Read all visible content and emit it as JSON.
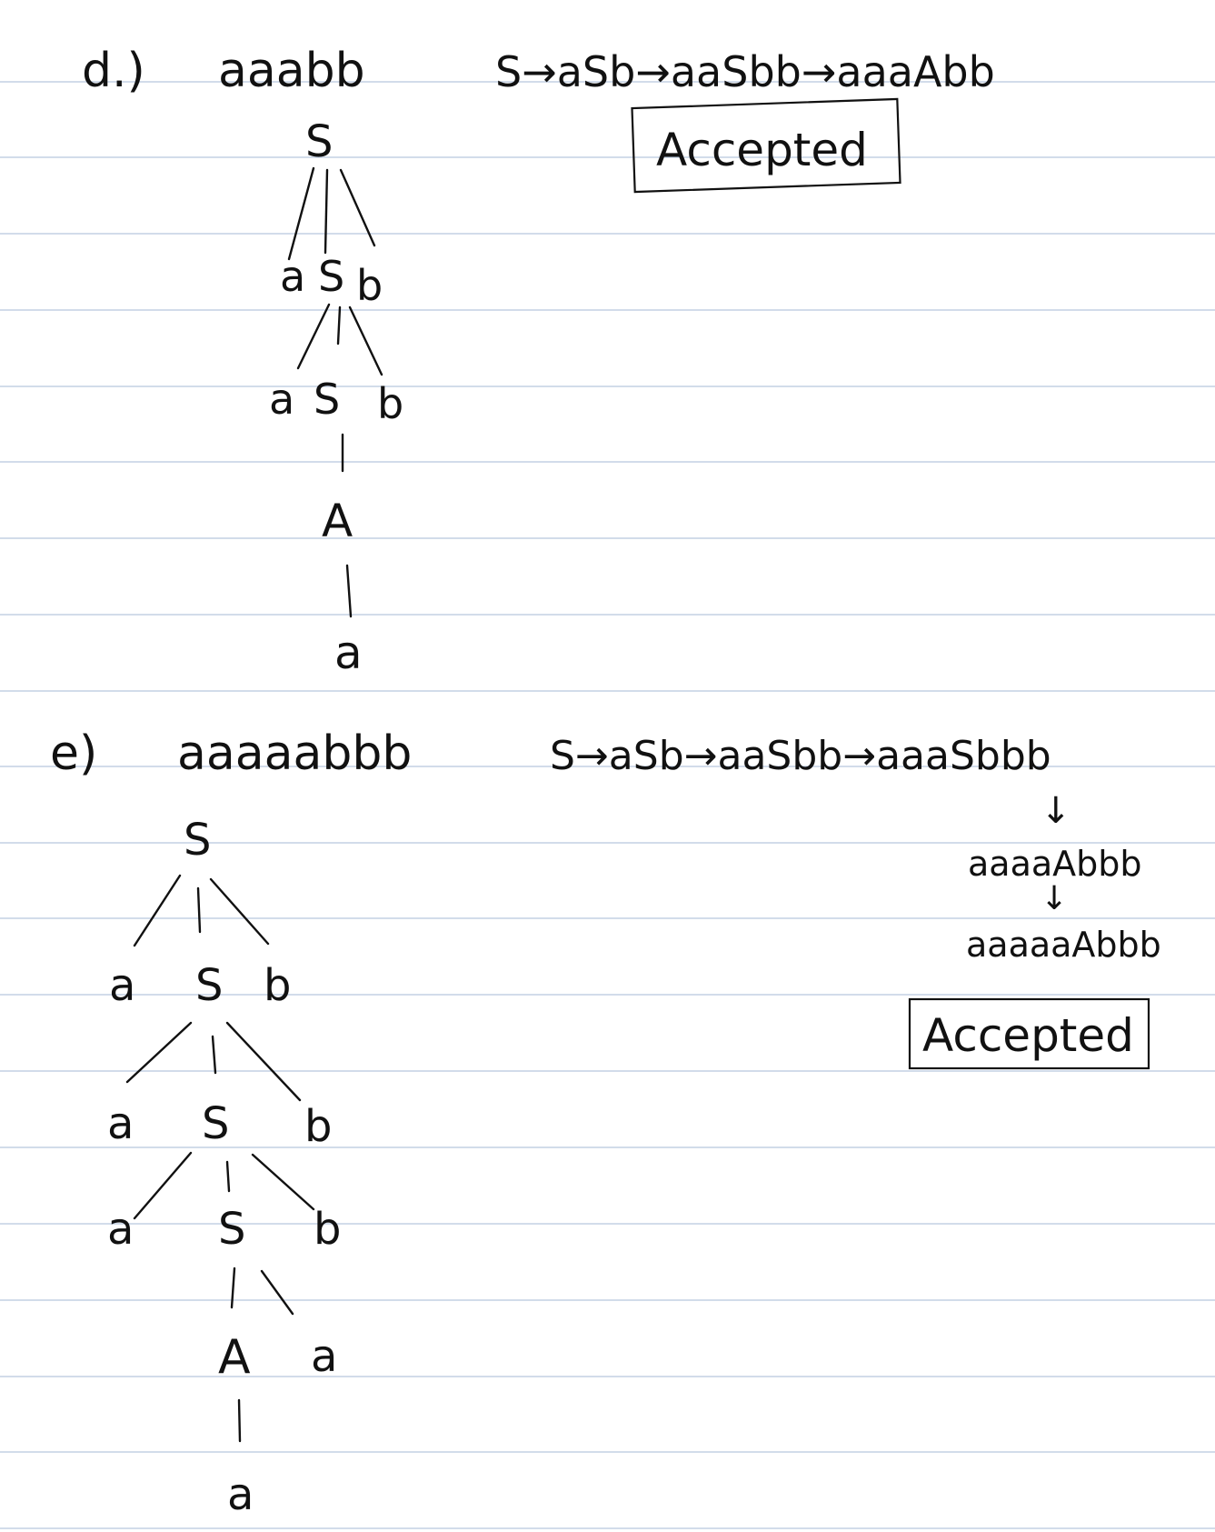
{
  "part_d": {
    "label": "d.)",
    "string": "aaabb",
    "derivation": "S→aSb→aaSbb→aaaAbb",
    "verdict": "Accepted",
    "tree": {
      "root": "S",
      "level1": [
        "a",
        "S",
        "b"
      ],
      "level2": [
        "a",
        "S",
        "b"
      ],
      "level3": [
        "A"
      ],
      "level4": [
        "a"
      ]
    }
  },
  "part_e": {
    "label": "e)",
    "string": "aaaaabbb",
    "derivation": "S→aSb→aaSbb→aaaSbbb",
    "step_arrow": "↓",
    "step_4": "aaaaAbbb",
    "step_5": "aaaaaAbbb",
    "verdict": "Accepted",
    "tree": {
      "root": "S",
      "level1": [
        "a",
        "S",
        "b"
      ],
      "level2": [
        "a",
        "S",
        "b"
      ],
      "level3": [
        "a",
        "S",
        "b"
      ],
      "level4": [
        "A",
        "a"
      ],
      "level5": [
        "a"
      ]
    }
  }
}
